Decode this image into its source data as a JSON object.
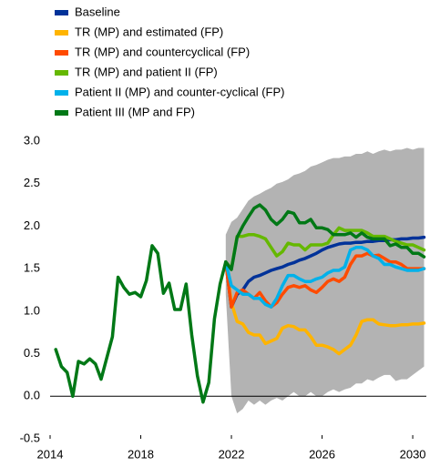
{
  "chart_data": {
    "type": "line",
    "x": [
      2014.25,
      2014.5,
      2014.75,
      2015,
      2015.25,
      2015.5,
      2015.75,
      2016,
      2016.25,
      2016.5,
      2016.75,
      2017,
      2017.25,
      2017.5,
      2017.75,
      2018,
      2018.25,
      2018.5,
      2018.75,
      2019,
      2019.25,
      2019.5,
      2019.75,
      2020,
      2020.25,
      2020.5,
      2020.75,
      2021,
      2021.25,
      2021.5,
      2021.75,
      2022,
      2022.25,
      2022.5,
      2022.75,
      2023,
      2023.25,
      2023.5,
      2023.75,
      2024,
      2024.25,
      2024.5,
      2024.75,
      2025,
      2025.25,
      2025.5,
      2025.75,
      2026,
      2026.25,
      2026.5,
      2026.75,
      2027,
      2027.25,
      2027.5,
      2027.75,
      2028,
      2028.25,
      2028.5,
      2028.75,
      2029,
      2029.25,
      2029.5,
      2029.75,
      2030,
      2030.25,
      2030.5
    ],
    "xlim": [
      2014,
      2030.6
    ],
    "xticks": [
      2014,
      2018,
      2022,
      2026,
      2030
    ],
    "ylim": [
      -0.5,
      3.0
    ],
    "yticks": [
      -0.5,
      {
        "value": 0,
        "label": "0.0"
      },
      0.5,
      {
        "value": 1,
        "label": "1.0"
      },
      1.5,
      {
        "value": 2,
        "label": "2.0"
      },
      2.5,
      {
        "value": 3,
        "label": "3.0"
      }
    ],
    "band": {
      "color": "#b3b3b3",
      "upper": [
        null,
        null,
        null,
        null,
        null,
        null,
        null,
        null,
        null,
        null,
        null,
        null,
        null,
        null,
        null,
        null,
        null,
        null,
        null,
        null,
        null,
        null,
        null,
        null,
        null,
        null,
        null,
        null,
        null,
        null,
        1.9,
        2.05,
        2.1,
        2.2,
        2.3,
        2.35,
        2.38,
        2.42,
        2.45,
        2.5,
        2.52,
        2.55,
        2.6,
        2.62,
        2.65,
        2.7,
        2.72,
        2.75,
        2.78,
        2.8,
        2.8,
        2.82,
        2.82,
        2.85,
        2.85,
        2.88,
        2.85,
        2.88,
        2.9,
        2.88,
        2.9,
        2.9,
        2.92,
        2.9,
        2.92,
        2.92
      ],
      "lower": [
        null,
        null,
        null,
        null,
        null,
        null,
        null,
        null,
        null,
        null,
        null,
        null,
        null,
        null,
        null,
        null,
        null,
        null,
        null,
        null,
        null,
        null,
        null,
        null,
        null,
        null,
        null,
        null,
        null,
        null,
        1.2,
        0.0,
        -0.2,
        -0.15,
        -0.05,
        -0.1,
        -0.05,
        -0.1,
        -0.05,
        -0.02,
        -0.05,
        0.0,
        0.05,
        0.0,
        0.0,
        0.05,
        0.0,
        0.0,
        0.05,
        0.08,
        0.05,
        0.08,
        0.1,
        0.15,
        0.15,
        0.2,
        0.18,
        0.22,
        0.25,
        0.25,
        0.18,
        0.2,
        0.2,
        0.25,
        0.3,
        0.35
      ]
    },
    "series": [
      {
        "name": "Baseline",
        "color": "#003299",
        "values": [
          null,
          null,
          null,
          null,
          null,
          null,
          null,
          null,
          null,
          null,
          null,
          null,
          null,
          null,
          null,
          null,
          null,
          null,
          null,
          null,
          null,
          null,
          null,
          null,
          null,
          null,
          null,
          null,
          null,
          null,
          1.58,
          1.05,
          1.2,
          1.25,
          1.35,
          1.4,
          1.42,
          1.45,
          1.48,
          1.5,
          1.52,
          1.55,
          1.57,
          1.6,
          1.62,
          1.65,
          1.68,
          1.72,
          1.75,
          1.77,
          1.79,
          1.8,
          1.8,
          1.81,
          1.81,
          1.82,
          1.82,
          1.83,
          1.83,
          1.84,
          1.84,
          1.85,
          1.85,
          1.86,
          1.86,
          1.87
        ]
      },
      {
        "name": "TR (MP) and estimated (FP)",
        "color": "#ffb400",
        "values": [
          null,
          null,
          null,
          null,
          null,
          null,
          null,
          null,
          null,
          null,
          null,
          null,
          null,
          null,
          null,
          null,
          null,
          null,
          null,
          null,
          null,
          null,
          null,
          null,
          null,
          null,
          null,
          null,
          null,
          null,
          1.58,
          1.1,
          0.88,
          0.85,
          0.75,
          0.72,
          0.72,
          0.62,
          0.65,
          0.68,
          0.8,
          0.83,
          0.82,
          0.78,
          0.78,
          0.7,
          0.6,
          0.6,
          0.58,
          0.55,
          0.5,
          0.55,
          0.6,
          0.72,
          0.88,
          0.9,
          0.9,
          0.85,
          0.84,
          0.83,
          0.83,
          0.84,
          0.84,
          0.85,
          0.85,
          0.86
        ]
      },
      {
        "name": "TR (MP) and countercyclical (FP)",
        "color": "#ff4b00",
        "values": [
          null,
          null,
          null,
          null,
          null,
          null,
          null,
          null,
          null,
          null,
          null,
          null,
          null,
          null,
          null,
          null,
          null,
          null,
          null,
          null,
          null,
          null,
          null,
          null,
          null,
          null,
          null,
          null,
          null,
          null,
          1.58,
          1.05,
          1.22,
          1.25,
          1.2,
          1.15,
          1.22,
          1.12,
          1.05,
          1.1,
          1.2,
          1.28,
          1.3,
          1.28,
          1.3,
          1.25,
          1.22,
          1.28,
          1.35,
          1.38,
          1.35,
          1.4,
          1.55,
          1.65,
          1.65,
          1.68,
          1.65,
          1.66,
          1.62,
          1.58,
          1.58,
          1.55,
          1.5,
          1.5,
          1.5,
          1.5
        ]
      },
      {
        "name": "TR (MP) and patient II (FP)",
        "color": "#65b800",
        "values": [
          null,
          null,
          null,
          null,
          null,
          null,
          null,
          null,
          null,
          null,
          null,
          null,
          null,
          null,
          null,
          null,
          null,
          null,
          null,
          null,
          null,
          null,
          null,
          null,
          null,
          null,
          null,
          null,
          null,
          null,
          1.58,
          1.5,
          1.88,
          1.88,
          1.9,
          1.9,
          1.88,
          1.85,
          1.75,
          1.65,
          1.7,
          1.8,
          1.78,
          1.78,
          1.72,
          1.78,
          1.78,
          1.78,
          1.8,
          1.9,
          1.98,
          1.95,
          1.95,
          1.95,
          1.95,
          1.92,
          1.88,
          1.88,
          1.88,
          1.85,
          1.82,
          1.8,
          1.78,
          1.78,
          1.75,
          1.72
        ]
      },
      {
        "name": "Patient II (MP) and counter-cyclical (FP)",
        "color": "#00b1ea",
        "values": [
          null,
          null,
          null,
          null,
          null,
          null,
          null,
          null,
          null,
          null,
          null,
          null,
          null,
          null,
          null,
          null,
          null,
          null,
          null,
          null,
          null,
          null,
          null,
          null,
          null,
          null,
          null,
          null,
          null,
          null,
          1.58,
          1.3,
          1.25,
          1.2,
          1.2,
          1.15,
          1.15,
          1.08,
          1.05,
          1.15,
          1.3,
          1.42,
          1.42,
          1.38,
          1.35,
          1.35,
          1.38,
          1.4,
          1.45,
          1.48,
          1.48,
          1.52,
          1.72,
          1.75,
          1.75,
          1.72,
          1.65,
          1.62,
          1.55,
          1.55,
          1.52,
          1.5,
          1.48,
          1.48,
          1.48,
          1.5
        ]
      },
      {
        "name": "Patient III (MP and FP)",
        "color": "#007816",
        "values": [
          0.55,
          0.35,
          0.28,
          0.0,
          0.41,
          0.38,
          0.44,
          0.38,
          0.2,
          0.45,
          0.7,
          1.4,
          1.28,
          1.2,
          1.22,
          1.17,
          1.36,
          1.77,
          1.68,
          1.21,
          1.33,
          1.02,
          1.02,
          1.32,
          0.72,
          0.24,
          -0.07,
          0.16,
          0.91,
          1.32,
          1.58,
          1.49,
          1.87,
          2.0,
          2.11,
          2.21,
          2.25,
          2.19,
          2.08,
          2.02,
          2.08,
          2.17,
          2.15,
          2.04,
          2.04,
          2.08,
          1.98,
          1.98,
          1.96,
          1.9,
          1.9,
          1.9,
          1.92,
          1.87,
          1.92,
          1.87,
          1.85,
          1.85,
          1.85,
          1.77,
          1.79,
          1.75,
          1.75,
          1.68,
          1.68,
          1.64
        ]
      }
    ]
  }
}
